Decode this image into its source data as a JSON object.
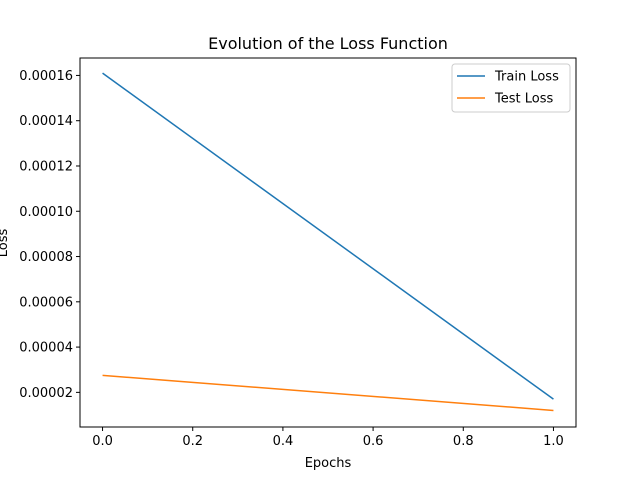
{
  "chart_data": {
    "type": "line",
    "title": "Evolution of the Loss Function",
    "xlabel": "Epochs",
    "ylabel": "Loss",
    "xlim": [
      -0.05,
      1.05
    ],
    "ylim": [
      4.7e-06,
      0.0001677
    ],
    "x_ticks": [
      0.0,
      0.2,
      0.4,
      0.6,
      0.8,
      1.0
    ],
    "x_tick_labels": [
      "0.0",
      "0.2",
      "0.4",
      "0.6",
      "0.8",
      "1.0"
    ],
    "y_ticks": [
      2e-05,
      4e-05,
      6e-05,
      8e-05,
      0.0001,
      0.00012,
      0.00014,
      0.00016
    ],
    "y_tick_labels": [
      "0.00002",
      "0.00004",
      "0.00006",
      "0.00008",
      "0.00010",
      "0.00012",
      "0.00014",
      "0.00016"
    ],
    "grid": false,
    "legend_position": "top-right",
    "series": [
      {
        "name": "Train Loss",
        "x": [
          0,
          1
        ],
        "values": [
          0.000161,
          1.7e-05
        ],
        "color": "#1f77b4"
      },
      {
        "name": "Test Loss",
        "x": [
          0,
          1
        ],
        "values": [
          2.75e-05,
          1.2e-05
        ],
        "color": "#ff7f0e"
      }
    ]
  }
}
